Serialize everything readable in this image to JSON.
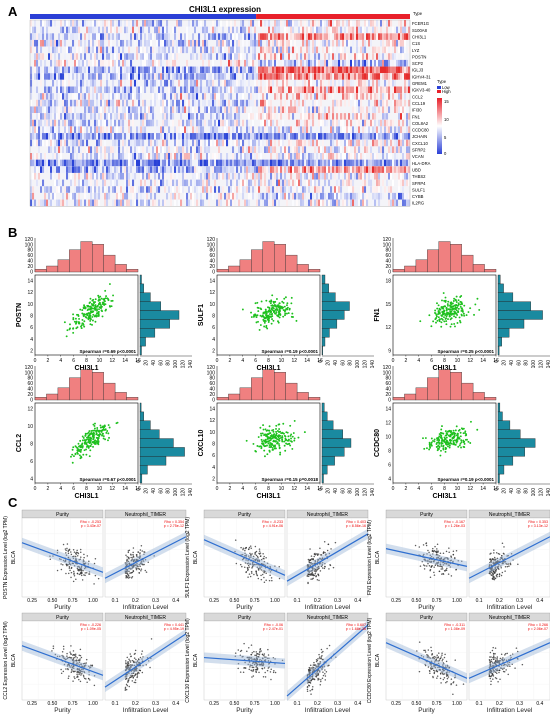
{
  "panels": {
    "a": "A",
    "b": "B",
    "c": "C"
  },
  "heatmap": {
    "title": "CHI3L1 expression",
    "genes": [
      "FCER1G",
      "S100A8",
      "CHI3L1",
      "C1S",
      "LYZ",
      "POSTN",
      "SCP2",
      "IGLJ3",
      "IGHV4-31",
      "GREM1",
      "IGKV3-40",
      "CCL2",
      "CCL19",
      "IFI30",
      "FN1",
      "COL8A2",
      "CCDC80",
      "JCHAIN",
      "CXCL10",
      "SFRP2",
      "VCAN",
      "HLA-DRA",
      "UBD",
      "THBS2",
      "SFRP4",
      "SULF1",
      "CYBB",
      "IL2RG"
    ],
    "legend_type_title": "Type",
    "legend_type_items": [
      "Low",
      "High"
    ],
    "legend_color_ticks": [
      "15",
      "10",
      "5",
      "0"
    ],
    "colors": {
      "low": "#2a3fd6",
      "high": "#e8202a"
    }
  },
  "panel_b": [
    {
      "gene": "POSTN",
      "xlabel": "CHI3L1",
      "stat": "Spearman r=0.69 p<0.0001",
      "yticks": [
        "2",
        "4",
        "6",
        "8",
        "10",
        "12",
        "14"
      ]
    },
    {
      "gene": "SULF1",
      "xlabel": "CHI3L1",
      "stat": "Spearman r=0.19 p<0.0001",
      "yticks": [
        "2",
        "4",
        "6",
        "8",
        "10",
        "12",
        "14"
      ]
    },
    {
      "gene": "FN1",
      "xlabel": "CHI3L1",
      "stat": "Spearman r=0.25 p<0.0001",
      "yticks": [
        "9",
        "12",
        "15",
        "18"
      ]
    },
    {
      "gene": "CCL2",
      "xlabel": "CHI3L1",
      "stat": "Spearman r=0.67 p<0.0001",
      "yticks": [
        "4",
        "6",
        "8",
        "10",
        "12"
      ]
    },
    {
      "gene": "CXCL10",
      "xlabel": "CHI3L1",
      "stat": "Spearman r=0.15 p=0.0018",
      "yticks": [
        "2",
        "4",
        "6",
        "8",
        "10",
        "12",
        "14"
      ]
    },
    {
      "gene": "CCDC80",
      "xlabel": "CHI3L1",
      "stat": "Spearman r=0.19 p<0.0001",
      "yticks": [
        "4",
        "6",
        "8",
        "10",
        "12",
        "14"
      ]
    }
  ],
  "panel_b_axes": {
    "xticks": [
      "0",
      "2",
      "4",
      "6",
      "8",
      "10",
      "12",
      "14",
      "16"
    ],
    "hist_yticks": [
      "0",
      "20",
      "40",
      "60",
      "80",
      "100",
      "120"
    ],
    "side_xticks": [
      "0",
      "20",
      "40",
      "60",
      "80",
      "100",
      "120",
      "140"
    ]
  },
  "panel_c": [
    {
      "gene": "POSTN",
      "ylabel": "POSTN Expression Level (log2 TPM)",
      "stat1": "Rho = -0.253",
      "stat1b": "p = 3.43e-07",
      "stat2": "Rho = 0.354",
      "stat2b": "p = 2.75e-12"
    },
    {
      "gene": "SULF1",
      "ylabel": "SULF1 Expression Level (log2 TPM)",
      "stat1": "Rho = -0.233",
      "stat1b": "p = 4.91e-06",
      "stat2": "Rho = 0.403",
      "stat2b": "p = 8.56e-16"
    },
    {
      "gene": "FN1",
      "ylabel": "FN1 Expression Level (log2 TPM)",
      "stat1": "Rho = -0.167",
      "stat1b": "p = 1.26e-03",
      "stat2": "Rho = 0.353",
      "stat2b": "p = 3.13e-12"
    },
    {
      "gene": "CCL2",
      "ylabel": "CCL2 Expression Level (log2 TPM)",
      "stat1": "Rho = -0.226",
      "stat1b": "p = 1.09e-05",
      "stat2": "Rho = 0.441",
      "stat2b": "p = 4.95e-19"
    },
    {
      "gene": "CXCL10",
      "ylabel": "CXCL10 Expression Level (log2 TPM)",
      "stat1": "Rho = -0.06",
      "stat1b": "p = 2.47e-01",
      "stat2": "Rho = 0.607",
      "stat2b": "p = 1.68e-38"
    },
    {
      "gene": "CCDC80",
      "ylabel": "CCDC80 Expression Level (log2 TPM)",
      "stat1": "Rho = -0.311",
      "stat1b": "p = 1.08e-09",
      "stat2": "Rho = 0.266",
      "stat2b": "p = 2.06e-07"
    }
  ],
  "panel_c_common": {
    "strip1": "Purity",
    "strip2": "Neutrophil_TIMER",
    "side": "BLCA",
    "xlab1": "Purity",
    "xlab2": "Infiltration Level",
    "xticks1": [
      "0.25",
      "0.50",
      "0.75",
      "1.00"
    ],
    "xticks2": [
      "0.1",
      "0.2",
      "0.3",
      "0.4"
    ]
  }
}
